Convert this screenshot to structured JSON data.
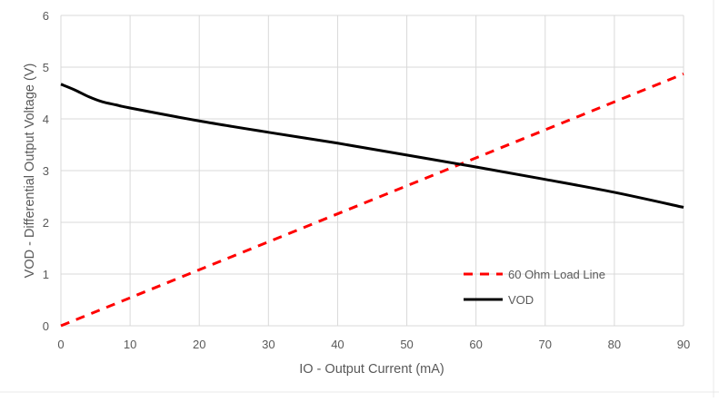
{
  "chart_data": {
    "type": "line",
    "title": "",
    "xlabel": "IO - Output Current (mA)",
    "ylabel": "VOD - Differential Output Voltage (V)",
    "xlim": [
      0,
      90
    ],
    "ylim": [
      0,
      6
    ],
    "xticks": [
      0,
      10,
      20,
      30,
      40,
      50,
      60,
      70,
      80,
      90
    ],
    "yticks": [
      0,
      1,
      2,
      3,
      4,
      5,
      6
    ],
    "grid": true,
    "legend_placement": "bottom-right-inside",
    "series": [
      {
        "name": "60 Ohm Load Line",
        "color": "#FF0000",
        "style": "dashed",
        "x": [
          0,
          90
        ],
        "y": [
          0,
          4.87
        ]
      },
      {
        "name": "VOD",
        "color": "#000000",
        "style": "solid",
        "x": [
          0,
          2,
          4,
          6,
          8,
          10,
          20,
          30,
          40,
          50,
          60,
          70,
          80,
          90
        ],
        "y": [
          4.67,
          4.56,
          4.43,
          4.33,
          4.27,
          4.21,
          3.96,
          3.74,
          3.53,
          3.3,
          3.07,
          2.83,
          2.58,
          2.29
        ]
      }
    ]
  }
}
